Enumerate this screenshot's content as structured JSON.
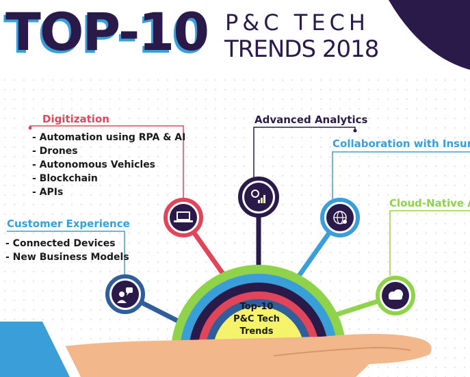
{
  "title": {
    "big": "TOP-10",
    "line1": "P&C TECH",
    "line2": "TRENDS 2018"
  },
  "center": {
    "line1": "Top-10",
    "line2": "P&C Tech",
    "line3": "Trends"
  },
  "nodes": {
    "digitization": {
      "heading": "Digitization",
      "items": [
        "- Automation using RPA & AI",
        "- Drones",
        "- Autonomous Vehicles",
        "- Blockchain",
        "- APIs"
      ],
      "icon": "laptop-icon",
      "color": "#e0455a"
    },
    "advanced_analytics": {
      "heading": "Advanced Analytics",
      "icon": "analytics-chart-icon",
      "color": "#2a1a4a"
    },
    "collaboration": {
      "heading": "Collaboration with InsurTe",
      "icon": "globe-network-icon",
      "color": "#3a9fd9"
    },
    "cloud_native": {
      "heading": "Cloud-Native Ap",
      "icon": "cloud-icon",
      "color": "#8fd34a"
    },
    "customer_experience": {
      "heading": "Customer Experience",
      "items": [
        "- Connected Devices",
        "- New Business Models"
      ],
      "icon": "person-chat-icon",
      "color": "#3a9fd9"
    }
  }
}
